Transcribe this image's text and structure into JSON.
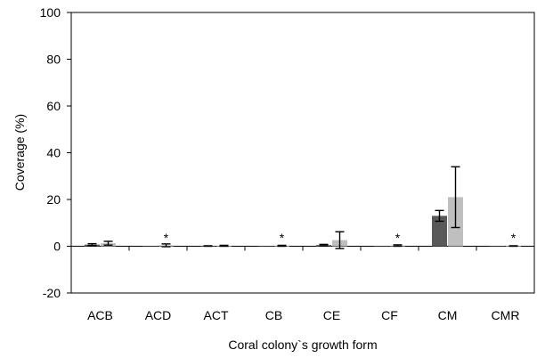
{
  "chart_data": {
    "type": "bar",
    "title": "",
    "xlabel": "Coral colony`s growth form",
    "ylabel": "Coverage (%)",
    "ylim": [
      -20,
      100
    ],
    "yticks": [
      "-20",
      "0",
      "20",
      "40",
      "60",
      "80",
      "100"
    ],
    "grid": false,
    "legend": "none",
    "categories": [
      "ACB",
      "ACD",
      "ACT",
      "CB",
      "CE",
      "CF",
      "CM",
      "CMR"
    ],
    "series": [
      {
        "color": "#595959",
        "values": [
          0.7,
          0.0,
          0.1,
          0.0,
          0.5,
          0.0,
          13.0,
          0.0
        ],
        "errors": [
          0.4,
          0.0,
          0.1,
          0.0,
          0.3,
          0.0,
          2.3,
          0.0
        ]
      },
      {
        "color": "#bfbfbf",
        "values": [
          1.3,
          0.4,
          0.2,
          0.2,
          2.6,
          0.3,
          21.0,
          0.1
        ],
        "errors": [
          0.8,
          0.6,
          0.2,
          0.2,
          3.6,
          0.3,
          13.0,
          0.1
        ]
      }
    ],
    "annotations": [
      {
        "category": "ACD",
        "text": "*"
      },
      {
        "category": "CB",
        "text": "*"
      },
      {
        "category": "CF",
        "text": "*"
      },
      {
        "category": "CMR",
        "text": "*"
      }
    ]
  }
}
